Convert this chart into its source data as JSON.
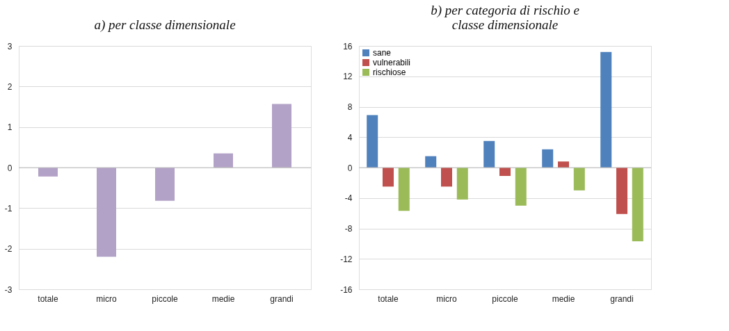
{
  "chart_data": [
    {
      "type": "bar",
      "title": "a) per classe dimensionale",
      "categories": [
        "totale",
        "micro",
        "piccole",
        "medie",
        "grandi"
      ],
      "values": [
        -0.22,
        -2.2,
        -0.82,
        0.35,
        1.57
      ],
      "color": "#b3a2c7",
      "ylim": [
        -3,
        3
      ],
      "yticks": [
        -3,
        -2,
        -1,
        0,
        1,
        2,
        3
      ],
      "grid": "y",
      "legend": false
    },
    {
      "type": "bar",
      "title": "b) per categoria di rischio e classe dimensionale",
      "categories": [
        "totale",
        "micro",
        "piccole",
        "medie",
        "grandi"
      ],
      "series": [
        {
          "name": "sane",
          "color": "#4f81bd",
          "values": [
            6.9,
            1.5,
            3.5,
            2.4,
            15.2
          ]
        },
        {
          "name": "vulnerabili",
          "color": "#c0504d",
          "values": [
            -2.5,
            -2.5,
            -1.1,
            0.8,
            -6.1
          ]
        },
        {
          "name": "rischiose",
          "color": "#9bbb59",
          "values": [
            -5.7,
            -4.2,
            -5.0,
            -3.0,
            -9.7
          ]
        }
      ],
      "ylim": [
        -16,
        16
      ],
      "yticks": [
        -16,
        -12,
        -8,
        -4,
        0,
        4,
        8,
        12,
        16
      ],
      "grid": "y",
      "legend": "top left"
    }
  ]
}
